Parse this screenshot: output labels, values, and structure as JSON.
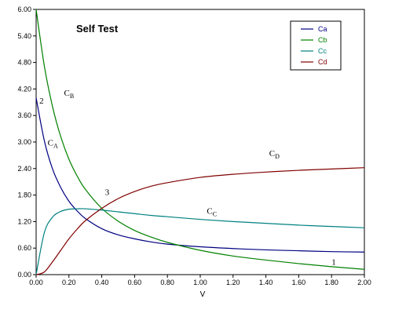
{
  "chart_data": {
    "type": "line",
    "title": "Self Test",
    "xlabel": "V",
    "ylabel": "",
    "xlim": [
      0,
      2.0
    ],
    "ylim": [
      0,
      6.0
    ],
    "x_ticks": [
      "0.00",
      "0.20",
      "0.40",
      "0.60",
      "0.80",
      "1.00",
      "1.20",
      "1.40",
      "1.60",
      "1.80",
      "2.00"
    ],
    "y_ticks": [
      "0.00",
      "0.60",
      "1.20",
      "1.80",
      "2.40",
      "3.00",
      "3.60",
      "4.20",
      "4.80",
      "5.40",
      "6.00"
    ],
    "grid": false,
    "legend_position": "top-right",
    "x": [
      0,
      0.05,
      0.1,
      0.15,
      0.2,
      0.25,
      0.3,
      0.4,
      0.5,
      0.6,
      0.7,
      0.8,
      1.0,
      1.2,
      1.4,
      1.6,
      1.8,
      2.0
    ],
    "series": [
      {
        "name": "Ca",
        "color": "#000080",
        "values": [
          4.0,
          3.03,
          2.39,
          1.97,
          1.66,
          1.44,
          1.27,
          1.04,
          0.9,
          0.81,
          0.74,
          0.69,
          0.63,
          0.59,
          0.56,
          0.54,
          0.52,
          0.51
        ]
      },
      {
        "name": "Cb",
        "color": "#008000",
        "values": [
          6.0,
          4.72,
          3.8,
          3.12,
          2.61,
          2.23,
          1.93,
          1.5,
          1.21,
          1.0,
          0.85,
          0.73,
          0.55,
          0.42,
          0.33,
          0.25,
          0.18,
          0.12
        ]
      },
      {
        "name": "Cc",
        "color": "#008080",
        "values": [
          0.0,
          0.95,
          1.3,
          1.43,
          1.48,
          1.49,
          1.49,
          1.46,
          1.42,
          1.38,
          1.34,
          1.31,
          1.25,
          1.2,
          1.16,
          1.12,
          1.09,
          1.06
        ]
      },
      {
        "name": "Cd",
        "color": "#800000",
        "values": [
          0.0,
          0.06,
          0.29,
          0.55,
          0.81,
          1.03,
          1.22,
          1.5,
          1.72,
          1.88,
          2.0,
          2.08,
          2.2,
          2.27,
          2.32,
          2.36,
          2.39,
          2.42
        ]
      }
    ],
    "curve_labels": [
      {
        "main": "C",
        "sub": "B",
        "x": 0.17,
        "y": 4.05
      },
      {
        "main": "C",
        "sub": "A",
        "x": 0.07,
        "y": 2.92
      },
      {
        "main": "C",
        "sub": "D",
        "x": 1.42,
        "y": 2.68
      },
      {
        "main": "C",
        "sub": "C",
        "x": 1.04,
        "y": 1.38
      }
    ],
    "markers": [
      {
        "text": "2",
        "x": 0.02,
        "y": 3.87
      },
      {
        "text": "3",
        "x": 0.42,
        "y": 1.8
      },
      {
        "text": "1",
        "x": 1.8,
        "y": 0.22
      }
    ]
  }
}
